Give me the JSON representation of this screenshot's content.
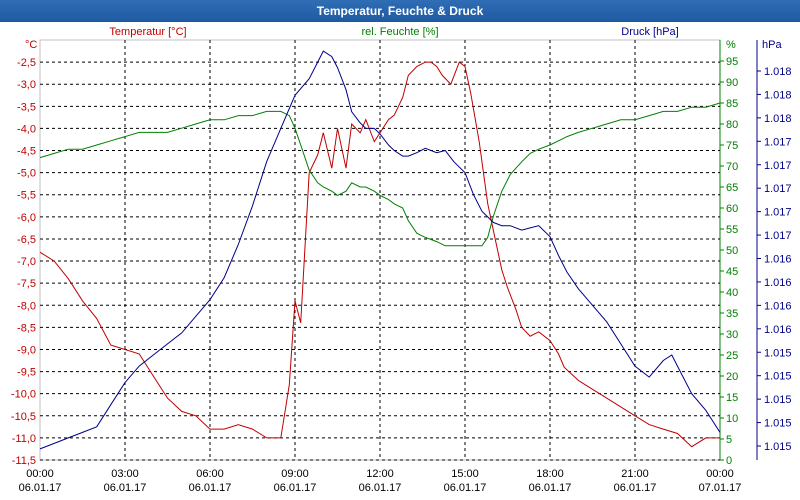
{
  "window": {
    "title": "Temperatur, Feuchte & Druck"
  },
  "colors": {
    "temperature": "#c00000",
    "humidity": "#008000",
    "pressure": "#00008b",
    "grid": "#000000",
    "frame": "#c0c0c0"
  },
  "chart_data": {
    "type": "line",
    "title": "Temperatur, Feuchte & Druck",
    "grid": true,
    "x_ticks": [
      {
        "time": "00:00",
        "date": "06.01.17"
      },
      {
        "time": "03:00",
        "date": "06.01.17"
      },
      {
        "time": "06:00",
        "date": "06.01.17"
      },
      {
        "time": "09:00",
        "date": "06.01.17"
      },
      {
        "time": "12:00",
        "date": "06.01.17"
      },
      {
        "time": "15:00",
        "date": "06.01.17"
      },
      {
        "time": "18:00",
        "date": "06.01.17"
      },
      {
        "time": "21:00",
        "date": "06.01.17"
      },
      {
        "time": "00:00",
        "date": "07.01.17"
      }
    ],
    "x_range_hours": [
      0,
      24
    ],
    "axes": {
      "temperature": {
        "label": "Temperatur [°C]",
        "unit": "°C",
        "range": [
          -11.5,
          -2.0
        ],
        "ticks": [
          "-2,5",
          "-3,0",
          "-3,5",
          "-4,0",
          "-4,5",
          "-5,0",
          "-5,5",
          "-6,0",
          "-6,5",
          "-7,0",
          "-7,5",
          "-8,0",
          "-8,5",
          "-9,0",
          "-9,5",
          "-10,0",
          "-10,5",
          "-11,0",
          "-11,5"
        ]
      },
      "humidity": {
        "label": "rel. Feuchte [%]",
        "unit": "%",
        "range": [
          0,
          100
        ],
        "ticks": [
          "95",
          "90",
          "85",
          "80",
          "75",
          "70",
          "65",
          "60",
          "55",
          "50",
          "45",
          "40",
          "35",
          "30",
          "25",
          "20",
          "15",
          "10",
          "5",
          "0"
        ]
      },
      "pressure": {
        "label": "Druck [hPa]",
        "unit": "hPa",
        "range": [
          1014.6,
          1018.4
        ],
        "ticks": [
          "1.018",
          "1.018",
          "1.018",
          "1.017",
          "1.017",
          "1.017",
          "1.017",
          "1.017",
          "1.016",
          "1.016",
          "1.016",
          "1.016",
          "1.015",
          "1.015",
          "1.015",
          "1.015",
          "1.015"
        ]
      }
    },
    "series": [
      {
        "name": "Temperatur [°C]",
        "axis": "temperature",
        "x": [
          0,
          0.5,
          1,
          1.5,
          2,
          2.5,
          3,
          3.5,
          4,
          4.5,
          5,
          5.5,
          6,
          6.5,
          7,
          7.5,
          8,
          8.5,
          8.8,
          9,
          9.2,
          9.5,
          9.8,
          10,
          10.3,
          10.5,
          10.8,
          11,
          11.3,
          11.5,
          11.8,
          12,
          12.3,
          12.5,
          12.8,
          13,
          13.3,
          13.6,
          13.8,
          14,
          14.2,
          14.5,
          14.8,
          15,
          15.2,
          15.5,
          15.8,
          16,
          16.3,
          16.5,
          16.8,
          17,
          17.3,
          17.6,
          18,
          18.3,
          18.5,
          19,
          19.5,
          20,
          20.5,
          21,
          21.5,
          22,
          22.5,
          23,
          23.5,
          24
        ],
        "values": [
          -6.8,
          -7.0,
          -7.4,
          -7.9,
          -8.3,
          -8.9,
          -9.0,
          -9.1,
          -9.6,
          -10.1,
          -10.4,
          -10.5,
          -10.8,
          -10.8,
          -10.7,
          -10.8,
          -11.0,
          -11.0,
          -9.8,
          -7.9,
          -8.4,
          -5.0,
          -4.6,
          -4.1,
          -4.9,
          -4.0,
          -4.9,
          -3.9,
          -4.1,
          -3.8,
          -4.3,
          -4.1,
          -3.8,
          -3.7,
          -3.3,
          -2.8,
          -2.6,
          -2.5,
          -2.5,
          -2.6,
          -2.8,
          -3.0,
          -2.5,
          -2.6,
          -3.2,
          -4.3,
          -5.7,
          -6.3,
          -7.2,
          -7.6,
          -8.1,
          -8.5,
          -8.7,
          -8.6,
          -8.8,
          -9.1,
          -9.4,
          -9.7,
          -9.9,
          -10.1,
          -10.3,
          -10.5,
          -10.7,
          -10.8,
          -10.9,
          -11.2,
          -11.0,
          -11.0
        ]
      },
      {
        "name": "rel. Feuchte [%]",
        "axis": "humidity",
        "x": [
          0,
          0.5,
          1,
          1.5,
          2,
          2.5,
          3,
          3.5,
          4,
          4.5,
          5,
          5.5,
          6,
          6.5,
          7,
          7.5,
          8,
          8.5,
          8.8,
          9,
          9.2,
          9.5,
          9.8,
          10,
          10.3,
          10.5,
          10.8,
          11,
          11.3,
          11.5,
          11.8,
          12,
          12.3,
          12.5,
          12.8,
          13,
          13.3,
          13.6,
          14,
          14.3,
          14.6,
          15,
          15.3,
          15.6,
          15.8,
          16,
          16.3,
          16.6,
          17,
          17.3,
          17.6,
          18,
          18.3,
          18.6,
          19,
          19.5,
          20,
          20.5,
          21,
          21.5,
          22,
          22.5,
          23,
          23.5,
          24
        ],
        "values": [
          72,
          73,
          74,
          74,
          75,
          76,
          77,
          78,
          78,
          78,
          79,
          80,
          81,
          81,
          82,
          82,
          83,
          83,
          82,
          79,
          75,
          69,
          66,
          65,
          64,
          63,
          64,
          66,
          65,
          65,
          64,
          63,
          62,
          61,
          60,
          57,
          54,
          53,
          52,
          51,
          51,
          51,
          51,
          51,
          53,
          58,
          64,
          68,
          71,
          73,
          74,
          75,
          76,
          77,
          78,
          79,
          80,
          81,
          81,
          82,
          83,
          83,
          84,
          84,
          85
        ]
      },
      {
        "name": "Druck [hPa]",
        "axis": "pressure",
        "x": [
          0,
          0.5,
          1,
          1.5,
          2,
          2.5,
          3,
          3.5,
          4,
          4.5,
          5,
          5.5,
          6,
          6.5,
          7,
          7.5,
          8,
          8.5,
          9,
          9.5,
          9.8,
          10,
          10.3,
          10.5,
          10.8,
          11,
          11.3,
          11.5,
          11.8,
          12,
          12.3,
          12.5,
          12.8,
          13,
          13.3,
          13.6,
          14,
          14.3,
          14.6,
          15,
          15.3,
          15.6,
          16,
          16.3,
          16.6,
          17,
          17.3,
          17.6,
          18,
          18.3,
          18.6,
          19,
          19.5,
          20,
          20.5,
          21,
          21.5,
          22,
          22.3,
          22.6,
          23,
          23.5,
          24
        ],
        "values": [
          1014.7,
          1014.75,
          1014.8,
          1014.85,
          1014.9,
          1015.1,
          1015.3,
          1015.45,
          1015.55,
          1015.65,
          1015.75,
          1015.9,
          1016.05,
          1016.25,
          1016.55,
          1016.9,
          1017.3,
          1017.6,
          1017.9,
          1018.05,
          1018.2,
          1018.3,
          1018.25,
          1018.15,
          1017.95,
          1017.75,
          1017.65,
          1017.6,
          1017.6,
          1017.55,
          1017.45,
          1017.4,
          1017.35,
          1017.35,
          1017.38,
          1017.42,
          1017.38,
          1017.4,
          1017.3,
          1017.2,
          1017.0,
          1016.85,
          1016.75,
          1016.72,
          1016.72,
          1016.68,
          1016.7,
          1016.72,
          1016.62,
          1016.45,
          1016.3,
          1016.15,
          1016.0,
          1015.85,
          1015.65,
          1015.45,
          1015.35,
          1015.5,
          1015.55,
          1015.4,
          1015.2,
          1015.05,
          1014.85
        ]
      }
    ]
  }
}
